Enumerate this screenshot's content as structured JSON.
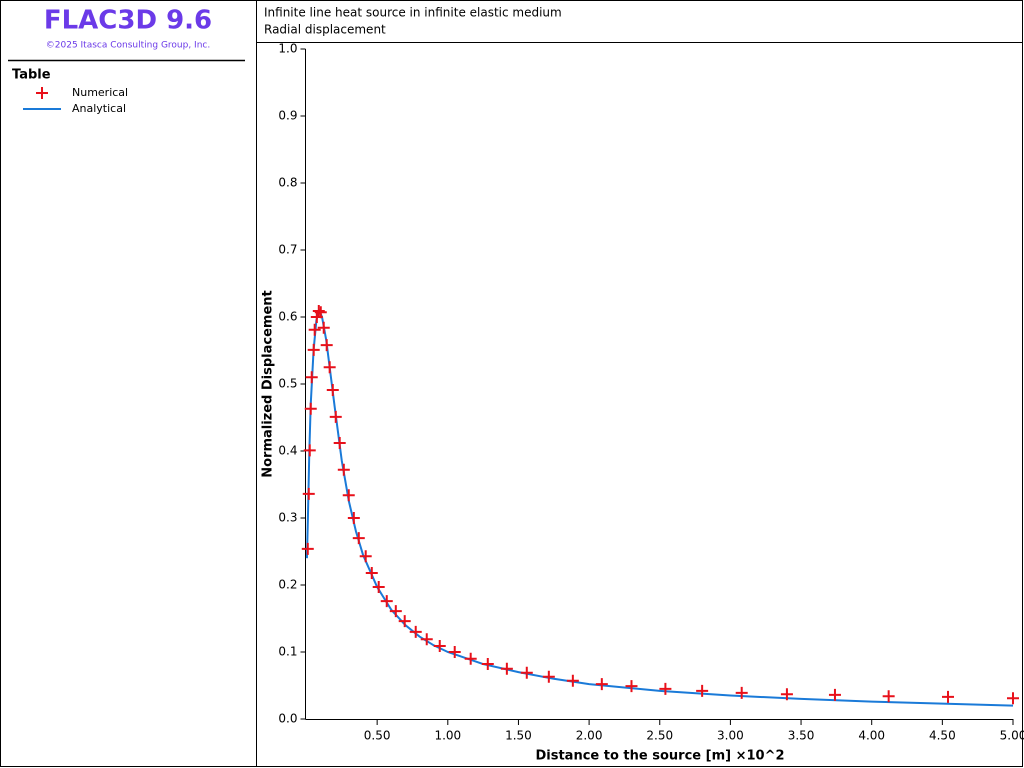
{
  "app": {
    "name": "FLAC3D 9.6",
    "copyright": "©2025 Itasca Consulting Group, Inc.",
    "legend_title": "Table"
  },
  "chart_data": {
    "type": "line",
    "title": "Infinite line heat source in infinite elastic medium",
    "subtitle": "Radial displacement",
    "xlabel": "Distance to the source [m] ×10^2",
    "ylabel": "Normalized Displacement",
    "xlim": [
      0,
      5
    ],
    "ylim": [
      0,
      1
    ],
    "xticks": [
      {
        "value": 0.5,
        "label": "0.50"
      },
      {
        "value": 1,
        "label": "1.00"
      },
      {
        "value": 1.5,
        "label": "1.50"
      },
      {
        "value": 2,
        "label": "2.00"
      },
      {
        "value": 2.5,
        "label": "2.50"
      },
      {
        "value": 3,
        "label": "3.00"
      },
      {
        "value": 3.5,
        "label": "3.50"
      },
      {
        "value": 4,
        "label": "4.00"
      },
      {
        "value": 4.5,
        "label": "4.50"
      },
      {
        "value": 5,
        "label": "5.00"
      }
    ],
    "yticks": [
      {
        "value": 0,
        "label": "0.0"
      },
      0.1,
      0.2,
      0.3,
      0.4,
      0.5,
      0.6,
      0.7,
      0.8,
      0.9,
      {
        "value": 1,
        "label": "1.0"
      }
    ],
    "series": [
      {
        "name": "Numerical",
        "color": "#e8101a",
        "mode": "markers",
        "x": [
          0.009,
          0.016,
          0.023,
          0.03,
          0.037,
          0.051,
          0.058,
          0.073,
          0.087,
          0.101,
          0.122,
          0.143,
          0.164,
          0.186,
          0.207,
          0.235,
          0.264,
          0.299,
          0.335,
          0.37,
          0.419,
          0.462,
          0.511,
          0.568,
          0.632,
          0.695,
          0.773,
          0.851,
          0.943,
          1.049,
          1.162,
          1.283,
          1.418,
          1.559,
          1.715,
          1.885,
          2.09,
          2.3,
          2.54,
          2.8,
          3.08,
          3.4,
          3.74,
          4.12,
          4.54,
          5.0
        ],
        "values": [
          0.254,
          0.336,
          0.401,
          0.463,
          0.51,
          0.551,
          0.581,
          0.6,
          0.609,
          0.607,
          0.584,
          0.558,
          0.525,
          0.491,
          0.451,
          0.412,
          0.372,
          0.334,
          0.3,
          0.27,
          0.243,
          0.218,
          0.197,
          0.176,
          0.161,
          0.146,
          0.13,
          0.119,
          0.109,
          0.1,
          0.09,
          0.082,
          0.075,
          0.069,
          0.063,
          0.057,
          0.052,
          0.049,
          0.045,
          0.042,
          0.039,
          0.037,
          0.036,
          0.034,
          0.033,
          0.031
        ]
      },
      {
        "name": "Analytical",
        "color": "#1a7ad8",
        "mode": "lines",
        "x": [
          0.003,
          0.01,
          0.02,
          0.03,
          0.05,
          0.07,
          0.09,
          0.11,
          0.14,
          0.17,
          0.2,
          0.25,
          0.3,
          0.35,
          0.4,
          0.5,
          0.6,
          0.7,
          0.8,
          0.9,
          1.0,
          1.25,
          1.5,
          1.75,
          2.0,
          2.5,
          3.0,
          3.5,
          4.0,
          4.5,
          5.0
        ],
        "values": [
          0.24,
          0.3,
          0.4,
          0.47,
          0.55,
          0.595,
          0.61,
          0.6,
          0.565,
          0.515,
          0.465,
          0.385,
          0.325,
          0.28,
          0.245,
          0.197,
          0.163,
          0.14,
          0.123,
          0.11,
          0.1,
          0.082,
          0.07,
          0.06,
          0.052,
          0.042,
          0.035,
          0.03,
          0.026,
          0.023,
          0.02
        ]
      }
    ]
  }
}
